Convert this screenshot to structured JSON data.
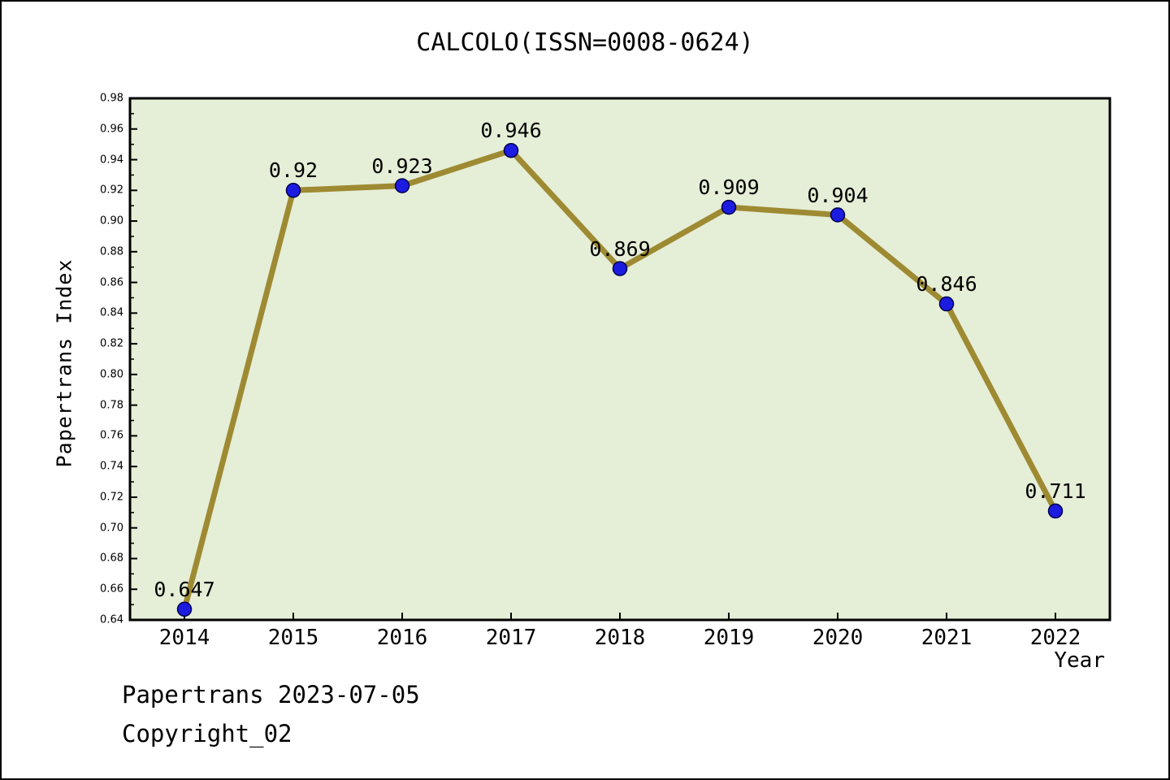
{
  "title": "CALCOLO(ISSN=0008-0624)",
  "footer": {
    "line1": "Papertrans 2023-07-05",
    "line2": "Copyright_02"
  },
  "chart_data": {
    "type": "line",
    "title": "CALCOLO(ISSN=0008-0624)",
    "xlabel": "Year",
    "ylabel": "Papertrans Index",
    "categories": [
      2014,
      2015,
      2016,
      2017,
      2018,
      2019,
      2020,
      2021,
      2022
    ],
    "values": [
      0.647,
      0.92,
      0.923,
      0.946,
      0.869,
      0.909,
      0.904,
      0.846,
      0.711
    ],
    "point_labels": [
      "0.647",
      "0.92",
      "0.923",
      "0.946",
      "0.869",
      "0.909",
      "0.904",
      "0.846",
      "0.711"
    ],
    "xlim": [
      2013.5,
      2022.5
    ],
    "ylim": [
      0.64,
      0.98
    ],
    "y_tick_labels": [
      "0.64",
      "0.66",
      "0.68",
      "0.70",
      "0.72",
      "0.74",
      "0.76",
      "0.78",
      "0.80",
      "0.82",
      "0.84",
      "0.86",
      "0.88",
      "0.90",
      "0.92",
      "0.94",
      "0.96",
      "0.98"
    ],
    "y_minor_step": 0.01,
    "grid": false,
    "legend": null,
    "colors": {
      "plot_background": "#e5eed6",
      "frame": "#000000",
      "line": "#9e8a32",
      "marker_fill": "#1c1ce0",
      "marker_edge": "#000050",
      "text": "#000000"
    }
  }
}
